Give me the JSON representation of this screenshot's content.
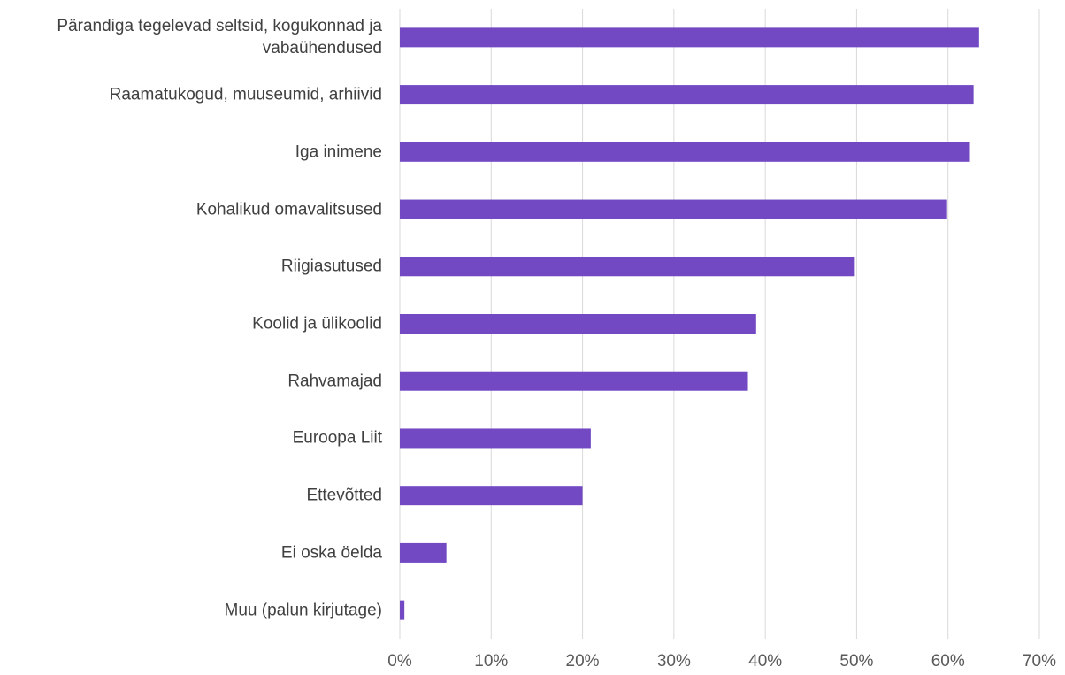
{
  "chart_data": {
    "type": "barh",
    "categories": [
      "Pärandiga tegelevad seltsid, kogukonnad ja vabaühendused",
      "Raamatukogud, muuseumid, arhiivid",
      "Iga inimene",
      "Kohalikud omavalitsused",
      "Riigiasutused",
      "Koolid ja ülikoolid",
      "Rahvamajad",
      "Euroopa Liit",
      "Ettevõtted",
      "Ei oska öelda",
      "Muu (palun kirjutage)"
    ],
    "values": [
      0.634,
      0.628,
      0.624,
      0.599,
      0.498,
      0.39,
      0.381,
      0.209,
      0.2,
      0.051,
      0.005
    ],
    "color": "#7349c3",
    "xlim": [
      0,
      0.7
    ],
    "xticks": [
      {
        "value": 0,
        "label": "0%"
      },
      {
        "value": 0.1,
        "label": "10%"
      },
      {
        "value": 0.2,
        "label": "20%"
      },
      {
        "value": 0.3,
        "label": "30%"
      },
      {
        "value": 0.4,
        "label": "40%"
      },
      {
        "value": 0.5,
        "label": "50%"
      },
      {
        "value": 0.6,
        "label": "60%"
      },
      {
        "value": 0.7,
        "label": "70%"
      }
    ],
    "grid": true
  }
}
